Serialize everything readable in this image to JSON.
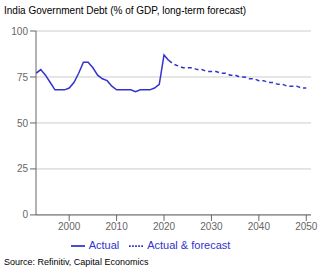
{
  "chart_data": {
    "type": "line",
    "title": "India Government Debt (% of GDP, long-term forecast)",
    "source": "Source: Refinitiv, Capital Economics",
    "xlim": [
      1993,
      2051
    ],
    "xticks": [
      2000,
      2010,
      2020,
      2030,
      2040,
      2050
    ],
    "ylim": [
      0,
      100
    ],
    "yticks": [
      0,
      25,
      50,
      75,
      100
    ],
    "grid": true,
    "legend": "bottom",
    "series": [
      {
        "name": "Actual",
        "color": "#3333cc",
        "line_style": "solid",
        "x": [
          1993,
          1994,
          1995,
          1996,
          1997,
          1998,
          1999,
          2000,
          2001,
          2002,
          2003,
          2004,
          2005,
          2006,
          2007,
          2008,
          2009,
          2010,
          2011,
          2012,
          2013,
          2014,
          2015,
          2016,
          2017,
          2018,
          2019,
          2020,
          2021
        ],
        "values": [
          77,
          79,
          76,
          72,
          68,
          68,
          68,
          69,
          72,
          77,
          83,
          83,
          80,
          76,
          74,
          73,
          70,
          68,
          68,
          68,
          68,
          67,
          68,
          68,
          68,
          69,
          71,
          87,
          84
        ]
      },
      {
        "name": "Actual & forecast",
        "color": "#3333cc",
        "line_style": "dashed",
        "x": [
          2021,
          2022,
          2023,
          2024,
          2025,
          2026,
          2027,
          2028,
          2029,
          2030,
          2031,
          2032,
          2033,
          2034,
          2035,
          2036,
          2037,
          2038,
          2039,
          2040,
          2041,
          2042,
          2043,
          2044,
          2045,
          2046,
          2047,
          2048,
          2049,
          2050
        ],
        "values": [
          84,
          82,
          81,
          80,
          80,
          80,
          79,
          79,
          78,
          78,
          78,
          77,
          77,
          76,
          76,
          75,
          75,
          74,
          74,
          73,
          73,
          72,
          72,
          71,
          71,
          70,
          70,
          70,
          69,
          69
        ]
      }
    ]
  }
}
